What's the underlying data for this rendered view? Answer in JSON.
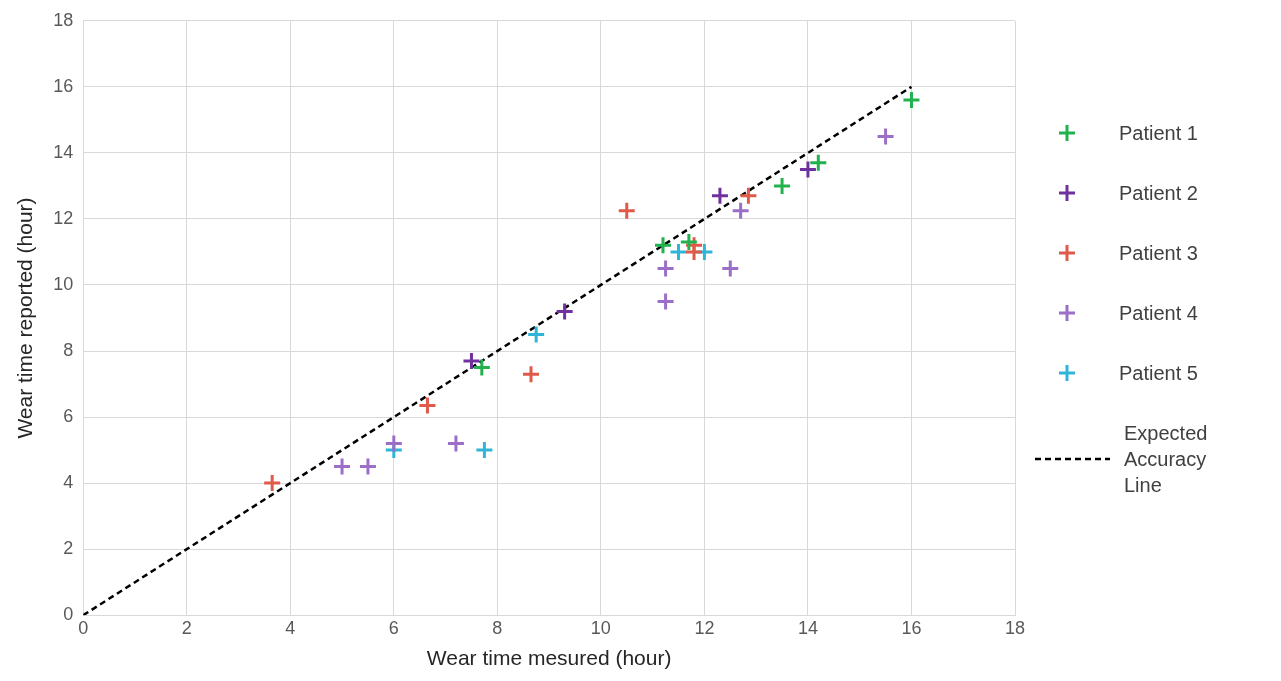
{
  "chart_data": {
    "type": "scatter",
    "xlabel": "Wear time mesured (hour)",
    "ylabel": "Wear time reported (hour)",
    "xlim": [
      0,
      18
    ],
    "xticks": [
      0,
      2,
      4,
      6,
      8,
      10,
      12,
      14,
      16,
      18
    ],
    "ylim": [
      0,
      18
    ],
    "yticks": [
      0,
      2,
      4,
      6,
      8,
      10,
      12,
      14,
      16,
      18
    ],
    "grid": true,
    "legend": "right",
    "marker": "cross",
    "series": [
      {
        "name": "Patient 1",
        "color": "#22b14c",
        "x": [
          16.0,
          14.2,
          13.5,
          11.2,
          11.7,
          7.7
        ],
        "values": [
          15.6,
          13.7,
          13.0,
          11.2,
          11.3,
          7.5
        ]
      },
      {
        "name": "Patient 2",
        "color": "#7030a0",
        "x": [
          12.3,
          14.0,
          9.3,
          7.5
        ],
        "values": [
          12.7,
          13.5,
          9.2,
          7.7
        ]
      },
      {
        "name": "Patient 3",
        "color": "#e05a4a",
        "x": [
          10.5,
          12.85,
          11.8,
          11.8,
          8.65,
          6.65,
          3.65
        ],
        "values": [
          12.25,
          12.7,
          11.2,
          11.0,
          7.3,
          6.35,
          4.0
        ]
      },
      {
        "name": "Patient 4",
        "color": "#9b6fc8",
        "x": [
          15.5,
          12.7,
          12.5,
          11.25,
          11.25,
          6.0,
          7.2,
          5.0,
          5.5
        ],
        "values": [
          14.5,
          12.25,
          10.5,
          10.5,
          9.5,
          5.2,
          5.2,
          4.5,
          4.5
        ]
      },
      {
        "name": "Patient 5",
        "color": "#2eb5d8",
        "x": [
          8.75,
          11.5,
          12.0,
          6.0,
          7.75
        ],
        "values": [
          8.5,
          11.0,
          11.0,
          5.0,
          5.0
        ]
      },
      {
        "name": "Expected Accuracy Line",
        "type": "line",
        "color": "#000000",
        "marker": "none",
        "line_style": "dashed",
        "x": [
          0,
          16
        ],
        "values": [
          0,
          16
        ]
      }
    ]
  }
}
